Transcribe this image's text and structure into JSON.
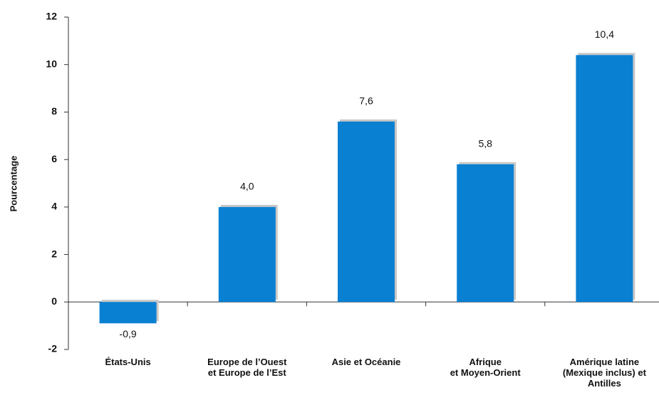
{
  "chart_data": {
    "type": "bar",
    "y_label": "Pourcentage",
    "categories": [
      "États-Unis",
      "Europe de l’Ouest\net Europe de l’Est",
      "Asie et Océanie",
      "Afrique\net Moyen-Orient",
      "Amérique latine\n(Mexique inclus) et\nAntilles"
    ],
    "values": [
      -0.9,
      4.0,
      7.6,
      5.8,
      10.4
    ],
    "value_labels": [
      "-0,9",
      "4,0",
      "7,6",
      "5,8",
      "10,4"
    ],
    "color": "#0a80d2",
    "ylim": [
      -2,
      12
    ],
    "yticks": [
      -2,
      0,
      2,
      4,
      6,
      8,
      10,
      12
    ],
    "grid": false
  }
}
